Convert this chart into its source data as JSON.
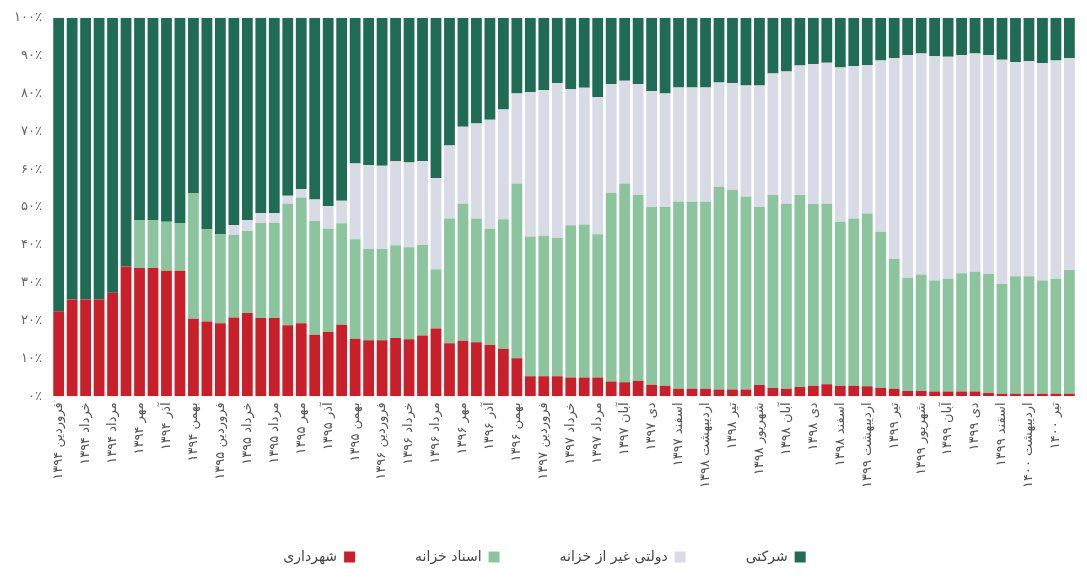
{
  "chart_data": {
    "type": "bar",
    "stacked": true,
    "grid": false,
    "legend": "bottom",
    "categories": [
      "فروردین ۱۳۹۴",
      null,
      "خرداد ۱۳۹۴",
      null,
      "مرداد ۱۳۹۴",
      null,
      "مهر ۱۳۹۴",
      null,
      "آذر ۱۳۹۴",
      null,
      "بهمن ۱۳۹۴",
      null,
      "فروردین ۱۳۹۵",
      null,
      "خرداد ۱۳۹۵",
      null,
      "مرداد ۱۳۹۵",
      null,
      "مهر ۱۳۹۵",
      null,
      "آذر ۱۳۹۵",
      null,
      "بهمن ۱۳۹۵",
      null,
      "فروردین ۱۳۹۶",
      null,
      "خرداد ۱۳۹۶",
      null,
      "مرداد ۱۳۹۶",
      null,
      "مهر ۱۳۹۶",
      null,
      "آذر ۱۳۹۶",
      null,
      "بهمن ۱۳۹۶",
      null,
      "فروردین ۱۳۹۷",
      null,
      "خرداد ۱۳۹۷",
      null,
      "مرداد ۱۳۹۷",
      null,
      "آبان ۱۳۹۷",
      null,
      "دی ۱۳۹۷",
      null,
      "اسفند ۱۳۹۷",
      null,
      "اردیبهشت ۱۳۹۸",
      null,
      "تیر ۱۳۹۸",
      null,
      "شهریور ۱۳۹۸",
      null,
      "آبان ۱۳۹۸",
      null,
      "دی ۱۳۹۸",
      null,
      "اسفند ۱۳۹۸",
      null,
      "اردیبهشت ۱۳۹۹",
      null,
      "تیر ۱۳۹۹",
      null,
      "شهریور ۱۳۹۹",
      null,
      "آبان ۱۳۹۹",
      null,
      "دی ۱۳۹۹",
      null,
      "اسفند ۱۳۹۹",
      null,
      "اردیبهشت ۱۴۰۰",
      null,
      "تیر ۱۴۰۰",
      null
    ],
    "ylim": [
      0,
      100
    ],
    "yticks": [
      {
        "value": 0,
        "label": "۰٪"
      },
      {
        "value": 10,
        "label": "۱۰٪"
      },
      {
        "value": 20,
        "label": "۲۰٪"
      },
      {
        "value": 30,
        "label": "۳۰٪"
      },
      {
        "value": 40,
        "label": "۴۰٪"
      },
      {
        "value": 50,
        "label": "۵۰٪"
      },
      {
        "value": 60,
        "label": "۶۰٪"
      },
      {
        "value": 70,
        "label": "۷۰٪"
      },
      {
        "value": 80,
        "label": "۸۰٪"
      },
      {
        "value": 90,
        "label": "۹۰٪"
      },
      {
        "value": 100,
        "label": "۱۰۰٪"
      }
    ],
    "series": [
      {
        "name": "شهرداری",
        "color": "#c8202a",
        "values": [
          22.5,
          25.6,
          25.6,
          25.6,
          27.4,
          34.3,
          33.9,
          33.9,
          33.2,
          33.2,
          20.5,
          19.8,
          19.3,
          20.8,
          22.0,
          20.7,
          20.7,
          18.8,
          19.3,
          16.3,
          17.0,
          18.9,
          15.2,
          14.8,
          14.8,
          15.4,
          15.1,
          16.1,
          17.9,
          14.0,
          14.7,
          14.3,
          13.6,
          12.6,
          10.1,
          5.3,
          5.3,
          5.3,
          5.0,
          5.0,
          5.0,
          3.9,
          3.7,
          4.1,
          3.1,
          2.8,
          2.0,
          2.0,
          2.0,
          1.8,
          1.8,
          1.8,
          3.0,
          2.2,
          2.0,
          2.5,
          2.8,
          3.2,
          2.8,
          2.8,
          2.7,
          2.3,
          2.0,
          1.4,
          1.4,
          1.3,
          1.3,
          1.3,
          1.3,
          0.9,
          0.7,
          0.7,
          0.7,
          0.7,
          0.7,
          0.7
        ]
      },
      {
        "name": "اسناد خزانه",
        "color": "#8cc49e",
        "values": [
          0,
          0,
          0,
          0,
          0,
          0,
          12.7,
          12.7,
          12.9,
          12.6,
          33.2,
          24.4,
          23.5,
          21.8,
          21.7,
          25.1,
          25.1,
          32.1,
          33.2,
          30.0,
          27.3,
          26.8,
          26.3,
          24.1,
          24.1,
          24.5,
          24.3,
          23.9,
          15.7,
          33.0,
          36.2,
          32.7,
          30.7,
          34.2,
          46.1,
          36.9,
          37.1,
          36.6,
          40.2,
          40.4,
          37.8,
          49.8,
          52.5,
          49.1,
          46.9,
          47.2,
          49.4,
          49.4,
          49.4,
          53.6,
          52.8,
          51.0,
          47.0,
          51.0,
          48.9,
          50.7,
          48.0,
          47.7,
          43.3,
          44.2,
          45.6,
          41.2,
          34.3,
          29.9,
          30.8,
          29.3,
          29.8,
          31.2,
          31.6,
          31.4,
          29.0,
          31.0,
          31.0,
          29.9,
          30.4,
          32.7
        ]
      },
      {
        "name": "دولتی غیر از خزانه",
        "color": "#d8dbe6",
        "values": [
          0,
          0,
          0,
          0,
          0,
          0,
          0,
          0,
          0,
          0,
          0,
          0,
          0,
          2.6,
          2.8,
          2.6,
          2.6,
          2.1,
          2.3,
          5.7,
          5.9,
          6.0,
          20.0,
          22.2,
          22.0,
          22.3,
          22.4,
          22.2,
          24.1,
          19.3,
          20.3,
          25.1,
          28.8,
          29.0,
          23.8,
          38.2,
          38.5,
          40.8,
          36.0,
          36.1,
          36.3,
          28.8,
          27.2,
          29.3,
          30.6,
          30.0,
          30.2,
          30.2,
          30.2,
          27.5,
          28.1,
          29.3,
          32.1,
          32.1,
          34.9,
          34.2,
          37.0,
          37.2,
          40.8,
          40.3,
          39.2,
          45.2,
          53.1,
          58.8,
          58.4,
          59.3,
          58.6,
          57.6,
          57.7,
          57.8,
          59.2,
          56.6,
          56.8,
          57.4,
          57.6,
          56.0
        ]
      },
      {
        "name": "شرکتی",
        "color": "#1f6b53",
        "values": [
          77.5,
          74.4,
          74.4,
          74.4,
          72.6,
          65.7,
          53.4,
          53.4,
          53.9,
          54.2,
          46.3,
          55.8,
          57.2,
          54.8,
          53.5,
          51.6,
          51.6,
          47.0,
          45.2,
          48.0,
          49.8,
          48.3,
          38.5,
          38.9,
          39.1,
          37.8,
          38.2,
          37.8,
          42.3,
          33.7,
          28.8,
          27.9,
          26.9,
          24.2,
          20.0,
          19.6,
          19.1,
          17.3,
          18.8,
          18.5,
          20.9,
          17.5,
          16.6,
          17.5,
          19.4,
          20.0,
          18.4,
          18.4,
          18.4,
          17.1,
          17.3,
          17.9,
          17.9,
          14.7,
          14.2,
          12.6,
          12.2,
          11.9,
          13.1,
          12.7,
          12.5,
          11.3,
          10.6,
          9.9,
          9.4,
          10.1,
          10.3,
          9.9,
          9.4,
          9.9,
          11.1,
          11.7,
          11.5,
          12.0,
          11.3,
          10.6
        ]
      }
    ]
  }
}
